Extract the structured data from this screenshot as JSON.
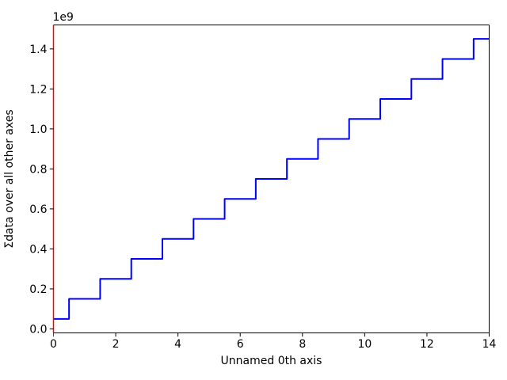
{
  "figure": {
    "background": "#ffffff"
  },
  "chart_data": {
    "type": "line",
    "style": "steps-mid",
    "title": "",
    "xlabel": "Unnamed 0th axis",
    "ylabel": "Σdata over all other axes",
    "y_offset_text": "1e9",
    "x": [
      0,
      1,
      2,
      3,
      4,
      5,
      6,
      7,
      8,
      9,
      10,
      11,
      12,
      13,
      14
    ],
    "y": [
      50000000,
      150000000,
      250000000,
      350000000,
      450000000,
      550000000,
      650000000,
      750000000,
      850000000,
      950000000,
      1050000000,
      1150000000,
      1250000000,
      1350000000,
      1450000000
    ],
    "xlim": [
      0,
      14
    ],
    "ylim": [
      -20000000,
      1520000000
    ],
    "xticks": {
      "values": [
        0,
        2,
        4,
        6,
        8,
        10,
        12,
        14
      ],
      "labels": [
        "0",
        "2",
        "4",
        "6",
        "8",
        "10",
        "12",
        "14"
      ]
    },
    "yticks": {
      "values": [
        0,
        200000000,
        400000000,
        600000000,
        800000000,
        1000000000,
        1200000000,
        1400000000
      ],
      "labels": [
        "0.0",
        "0.2",
        "0.4",
        "0.6",
        "0.8",
        "1.0",
        "1.2",
        "1.4"
      ]
    },
    "grid": false,
    "legend": null,
    "line": {
      "color": "#0000ff",
      "width": 2
    },
    "colors": {
      "left_spine": "#ff0000",
      "x0_tick": "#ff0000",
      "spine": "#000000",
      "tick": "#000000",
      "text": "#000000"
    }
  }
}
